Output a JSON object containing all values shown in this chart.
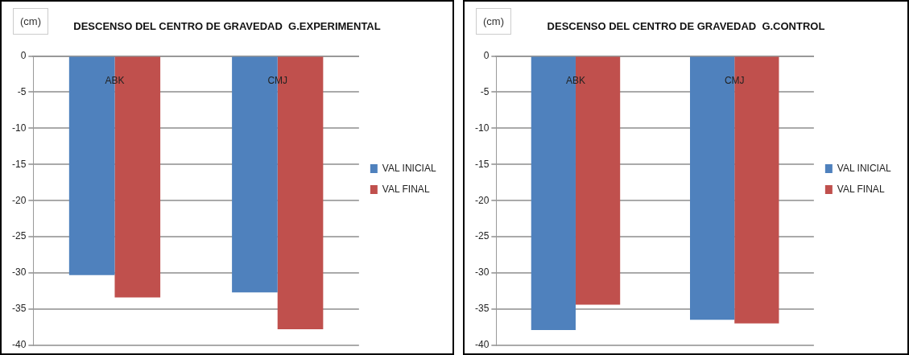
{
  "chart_data": [
    {
      "type": "bar",
      "title": "DESCENSO DEL CENTRO DE GRAVEDAD  G.EXPERIMENTAL",
      "ylabel": "(cm)",
      "categories": [
        "ABK",
        "CMJ"
      ],
      "series": [
        {
          "name": "VAL INICIAL",
          "color": "#4f81bd",
          "values": [
            -30.3,
            -32.7
          ]
        },
        {
          "name": "VAL FINAL",
          "color": "#c0504d",
          "values": [
            -33.4,
            -37.8
          ]
        }
      ],
      "ylim": [
        -40,
        0
      ],
      "yticks": [
        0,
        -5,
        -10,
        -15,
        -20,
        -25,
        -30,
        -35,
        -40
      ],
      "grid": "y",
      "legend": "right"
    },
    {
      "type": "bar",
      "title": "DESCENSO DEL CENTRO DE GRAVEDAD  G.CONTROL",
      "ylabel": "(cm)",
      "categories": [
        "ABK",
        "CMJ"
      ],
      "series": [
        {
          "name": "VAL INICIAL",
          "color": "#4f81bd",
          "values": [
            -37.9,
            -36.5
          ]
        },
        {
          "name": "VAL FINAL",
          "color": "#c0504d",
          "values": [
            -34.4,
            -37.0
          ]
        }
      ],
      "ylim": [
        -40,
        0
      ],
      "yticks": [
        0,
        -5,
        -10,
        -15,
        -20,
        -25,
        -30,
        -35,
        -40
      ],
      "grid": "y",
      "legend": "right"
    }
  ]
}
